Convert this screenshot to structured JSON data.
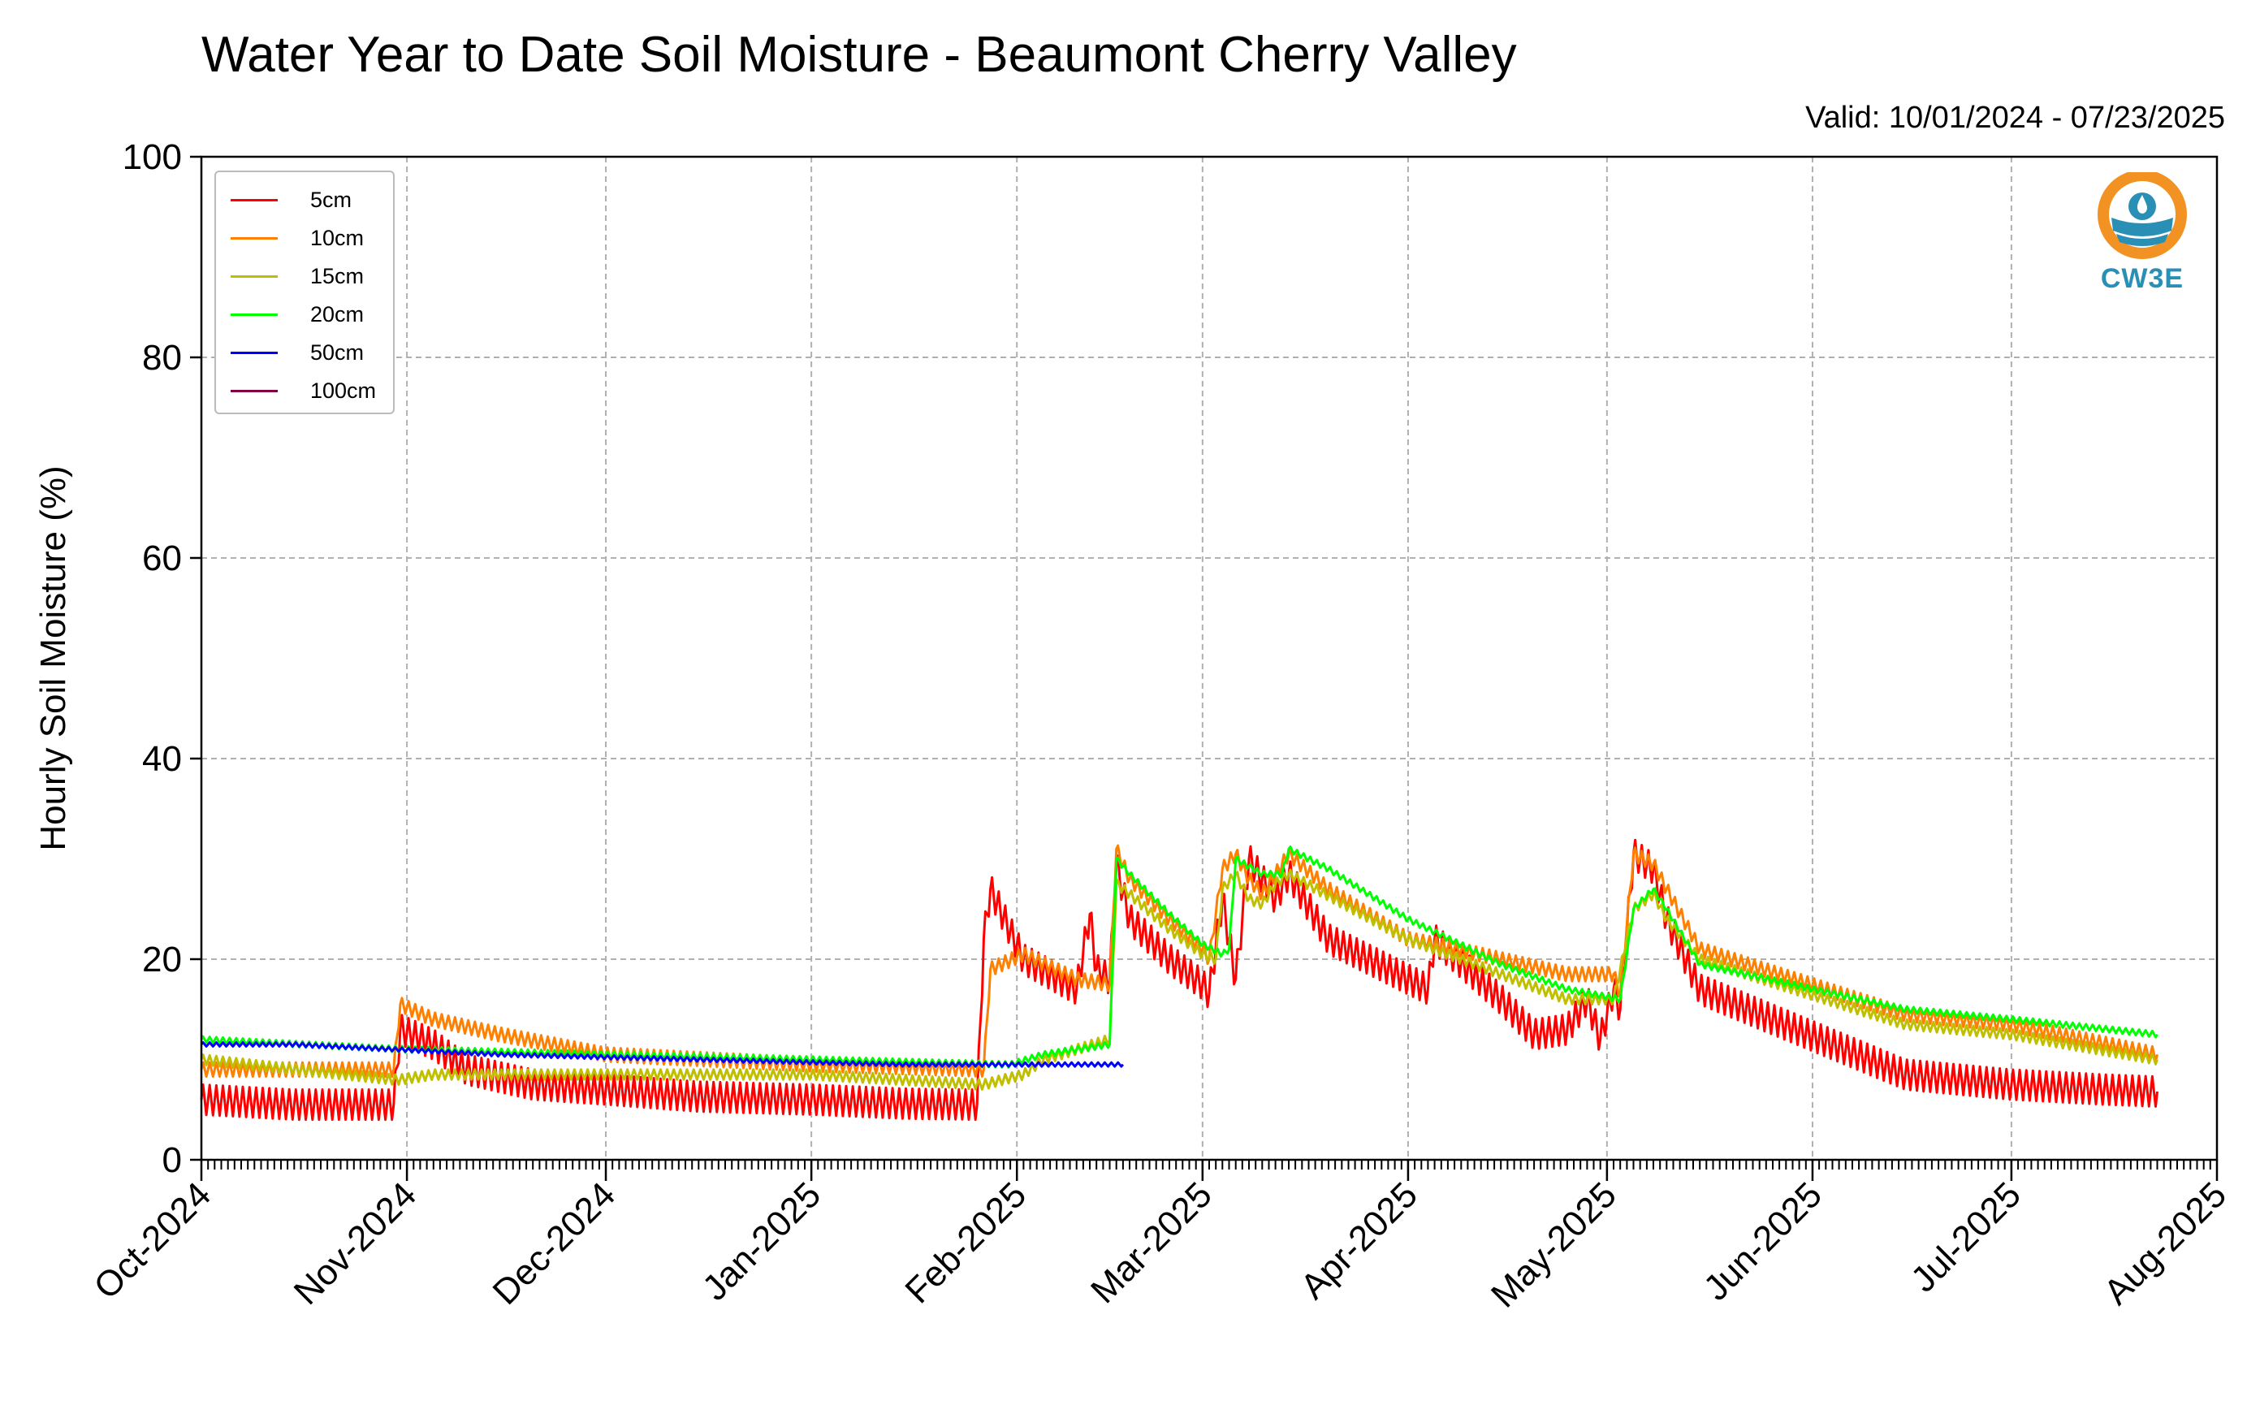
{
  "title": "Water Year to Date Soil Moisture - Beaumont Cherry Valley",
  "valid": "Valid: 10/01/2024 - 07/23/2025",
  "logo": {
    "text": "CW3E",
    "icon": "cw3e-water-drop-logo",
    "colors": {
      "ring": "#f29223",
      "blue": "#2a8fb5"
    }
  },
  "chart_data": {
    "type": "line",
    "title": "Water Year to Date Soil Moisture - Beaumont Cherry Valley",
    "xlabel": "",
    "ylabel": "Hourly Soil Moisture (%)",
    "ylim": [
      0,
      100
    ],
    "yticks": [
      0,
      20,
      40,
      60,
      80,
      100
    ],
    "xlim": [
      "2024-10-01",
      "2025-08-01"
    ],
    "xtick_labels": [
      "Oct-2024",
      "Nov-2024",
      "Dec-2024",
      "Jan-2025",
      "Feb-2025",
      "Mar-2025",
      "Apr-2025",
      "May-2025",
      "Jun-2025",
      "Jul-2025",
      "Aug-2025"
    ],
    "xtick_dates": [
      "2024-10-01",
      "2024-11-01",
      "2024-12-01",
      "2025-01-01",
      "2025-02-01",
      "2025-03-01",
      "2025-04-01",
      "2025-05-01",
      "2025-06-01",
      "2025-07-01",
      "2025-08-01"
    ],
    "grid": true,
    "legend_position": "top-left",
    "series": [
      {
        "name": "5cm",
        "color": "#ff0000",
        "diurnal_amplitude": 1.5,
        "x": [
          "2024-10-01",
          "2024-10-15",
          "2024-10-30",
          "2024-10-31",
          "2024-11-05",
          "2024-11-10",
          "2024-11-20",
          "2024-12-01",
          "2024-12-15",
          "2025-01-01",
          "2025-01-15",
          "2025-01-26",
          "2025-01-27",
          "2025-01-28",
          "2025-02-02",
          "2025-02-10",
          "2025-02-12",
          "2025-02-13",
          "2025-02-15",
          "2025-02-16",
          "2025-02-18",
          "2025-02-24",
          "2025-03-01",
          "2025-03-02",
          "2025-03-04",
          "2025-03-06",
          "2025-03-08",
          "2025-03-10",
          "2025-03-12",
          "2025-03-14",
          "2025-03-20",
          "2025-04-01",
          "2025-04-04",
          "2025-04-05",
          "2025-04-10",
          "2025-04-15",
          "2025-04-20",
          "2025-04-25",
          "2025-04-28",
          "2025-04-30",
          "2025-05-02",
          "2025-05-03",
          "2025-05-05",
          "2025-05-08",
          "2025-05-10",
          "2025-05-15",
          "2025-06-15",
          "2025-07-01",
          "2025-07-15",
          "2025-07-23"
        ],
        "y": [
          6.0,
          5.5,
          5.5,
          13.0,
          11.5,
          9.0,
          7.5,
          7.0,
          6.3,
          6.0,
          5.6,
          5.5,
          22.0,
          27.0,
          20.0,
          17.0,
          24.5,
          19.0,
          18.0,
          29.5,
          24.0,
          20.0,
          17.5,
          16.5,
          26.0,
          18.0,
          30.0,
          28.0,
          26.0,
          28.5,
          22.0,
          18.0,
          17.0,
          22.0,
          19.0,
          16.0,
          12.5,
          13.0,
          16.0,
          12.0,
          17.0,
          15.0,
          30.5,
          29.0,
          24.0,
          17.0,
          8.5,
          7.5,
          7.0,
          6.8
        ]
      },
      {
        "name": "10cm",
        "color": "#ff8000",
        "diurnal_amplitude": 0.7,
        "x": [
          "2024-10-01",
          "2024-10-30",
          "2024-10-31",
          "2024-11-05",
          "2024-11-15",
          "2024-12-01",
          "2025-01-01",
          "2025-01-27",
          "2025-01-28",
          "2025-02-02",
          "2025-02-10",
          "2025-02-15",
          "2025-02-16",
          "2025-02-18",
          "2025-02-24",
          "2025-03-01",
          "2025-03-02",
          "2025-03-04",
          "2025-03-06",
          "2025-03-08",
          "2025-03-10",
          "2025-03-14",
          "2025-03-20",
          "2025-04-01",
          "2025-04-05",
          "2025-04-15",
          "2025-04-25",
          "2025-05-02",
          "2025-05-03",
          "2025-05-05",
          "2025-05-08",
          "2025-05-10",
          "2025-05-15",
          "2025-06-15",
          "2025-07-01",
          "2025-07-23"
        ],
        "y": [
          9.0,
          9.0,
          15.5,
          14.0,
          12.5,
          10.5,
          9.5,
          9.0,
          19.0,
          20.5,
          18.0,
          17.5,
          31.0,
          28.0,
          24.0,
          21.0,
          20.0,
          29.0,
          30.5,
          28.0,
          26.5,
          30.5,
          27.0,
          22.0,
          21.5,
          20.0,
          18.5,
          18.5,
          16.5,
          30.5,
          29.5,
          27.0,
          21.0,
          14.5,
          13.5,
          10.5
        ]
      },
      {
        "name": "15cm",
        "color": "#bfbf00",
        "diurnal_amplitude": 0.5,
        "x": [
          "2024-10-01",
          "2024-10-30",
          "2024-10-31",
          "2024-11-05",
          "2024-12-01",
          "2025-01-01",
          "2025-01-27",
          "2025-02-02",
          "2025-02-05",
          "2025-02-10",
          "2025-02-15",
          "2025-02-16",
          "2025-02-18",
          "2025-02-24",
          "2025-03-01",
          "2025-03-03",
          "2025-03-04",
          "2025-03-06",
          "2025-03-08",
          "2025-03-10",
          "2025-03-12",
          "2025-03-14",
          "2025-04-01",
          "2025-04-15",
          "2025-04-25",
          "2025-05-02",
          "2025-05-05",
          "2025-05-08",
          "2025-05-10",
          "2025-05-15",
          "2025-06-15",
          "2025-07-01",
          "2025-07-23"
        ],
        "y": [
          10.0,
          8.0,
          8.0,
          8.5,
          8.5,
          8.5,
          7.5,
          8.5,
          10.0,
          11.0,
          12.0,
          27.5,
          26.5,
          23.0,
          20.5,
          20.0,
          27.0,
          28.5,
          26.0,
          25.5,
          27.5,
          28.5,
          22.0,
          18.5,
          16.0,
          16.0,
          25.0,
          26.5,
          24.0,
          20.0,
          13.5,
          12.5,
          10.0
        ]
      },
      {
        "name": "20cm",
        "color": "#00ff00",
        "diurnal_amplitude": 0.3,
        "x": [
          "2024-10-01",
          "2024-11-01",
          "2024-12-01",
          "2025-01-01",
          "2025-01-31",
          "2025-02-05",
          "2025-02-10",
          "2025-02-15",
          "2025-02-16",
          "2025-02-18",
          "2025-02-24",
          "2025-03-01",
          "2025-03-04",
          "2025-03-05",
          "2025-03-06",
          "2025-03-10",
          "2025-03-13",
          "2025-03-14",
          "2025-03-20",
          "2025-04-01",
          "2025-04-15",
          "2025-04-25",
          "2025-05-03",
          "2025-05-05",
          "2025-05-08",
          "2025-05-10",
          "2025-05-15",
          "2025-06-15",
          "2025-07-01",
          "2025-07-23"
        ],
        "y": [
          12.0,
          11.0,
          10.5,
          10.0,
          9.5,
          10.5,
          11.0,
          11.5,
          30.0,
          28.5,
          24.5,
          21.5,
          20.5,
          21.0,
          30.0,
          28.5,
          28.5,
          31.0,
          29.0,
          24.0,
          19.5,
          17.0,
          16.0,
          25.0,
          27.0,
          25.0,
          19.5,
          15.0,
          14.0,
          12.5
        ]
      },
      {
        "name": "50cm",
        "color": "#0000ff",
        "diurnal_amplitude": 0.2,
        "x": [
          "2024-10-01",
          "2024-10-15",
          "2024-11-15",
          "2024-12-15",
          "2025-01-15",
          "2025-02-17"
        ],
        "y": [
          11.5,
          11.5,
          10.5,
          10.0,
          9.5,
          9.5
        ]
      },
      {
        "name": "100cm",
        "color": "#800040",
        "x": [],
        "y": []
      }
    ]
  }
}
